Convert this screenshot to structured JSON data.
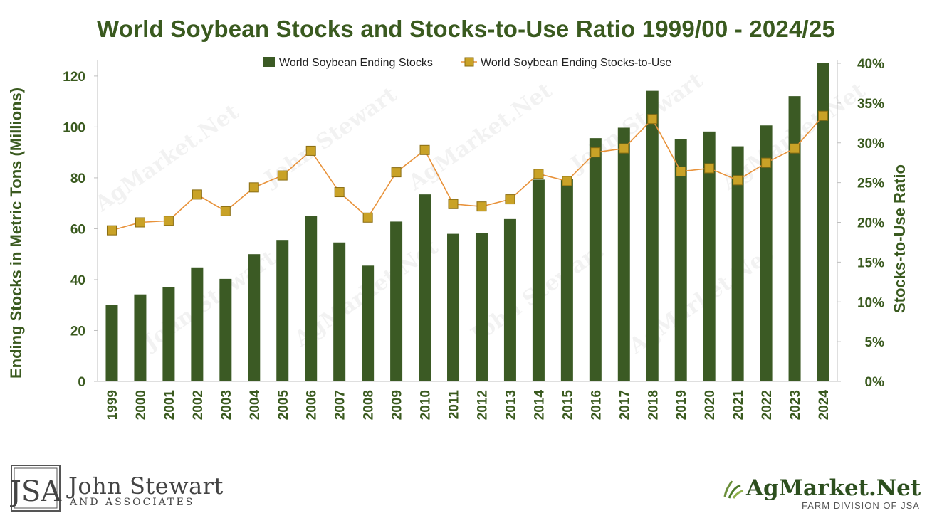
{
  "chart_data": {
    "type": "bar",
    "title": "World Soybean Stocks and Stocks-to-Use Ratio 1999/00 - 2024/25",
    "ylabel": "Ending Stocks in Metric Tons (Millions)",
    "y2label": "Stocks-to-Use Ratio",
    "xlabel": "",
    "ylim": [
      0,
      125
    ],
    "y2lim": [
      0,
      40
    ],
    "yticks": [
      "0",
      "20",
      "40",
      "60",
      "80",
      "100",
      "120"
    ],
    "ytick_values": [
      0,
      20,
      40,
      60,
      80,
      100,
      120
    ],
    "y2ticks": [
      "0%",
      "5%",
      "10%",
      "15%",
      "20%",
      "25%",
      "30%",
      "35%",
      "40%"
    ],
    "y2tick_values": [
      0,
      5,
      10,
      15,
      20,
      25,
      30,
      35,
      40
    ],
    "legend_position": "top",
    "categories": [
      "1999",
      "2000",
      "2001",
      "2002",
      "2003",
      "2004",
      "2005",
      "2006",
      "2007",
      "2008",
      "2009",
      "2010",
      "2011",
      "2012",
      "2013",
      "2014",
      "2015",
      "2016",
      "2017",
      "2018",
      "2019",
      "2020",
      "2021",
      "2022",
      "2023",
      "2024"
    ],
    "series": [
      {
        "name": "World Soybean Ending Stocks",
        "type": "bar",
        "axis": "left",
        "color": "#3b5a24",
        "values": [
          30,
          34.2,
          37,
          44.8,
          40.3,
          50,
          55.6,
          65,
          54.6,
          45.5,
          62.8,
          73.5,
          58,
          58.2,
          63.8,
          79.3,
          79.5,
          95.6,
          99.7,
          114.2,
          95.1,
          98.2,
          92.4,
          100.6,
          112.1,
          125
        ]
      },
      {
        "name": "World Soybean Ending Stocks-to-Use",
        "type": "line",
        "axis": "right",
        "color": "#e8923a",
        "marker_color": "#c9a227",
        "values": [
          19.0,
          20.0,
          20.2,
          23.5,
          21.4,
          24.4,
          25.9,
          29.0,
          23.8,
          20.6,
          26.3,
          29.1,
          22.3,
          22.0,
          22.9,
          26.1,
          25.2,
          28.8,
          29.3,
          33.0,
          26.4,
          26.8,
          25.3,
          27.5,
          29.3,
          33.4
        ]
      }
    ]
  },
  "branding": {
    "jsa_monogram": "JSA",
    "jsa_name": "John Stewart",
    "jsa_sub": "AND ASSOCIATES",
    "ag_name": "AgMarket.Net",
    "ag_sub": "FARM DIVISION OF JSA",
    "brand_color": "#2d4f1e"
  }
}
